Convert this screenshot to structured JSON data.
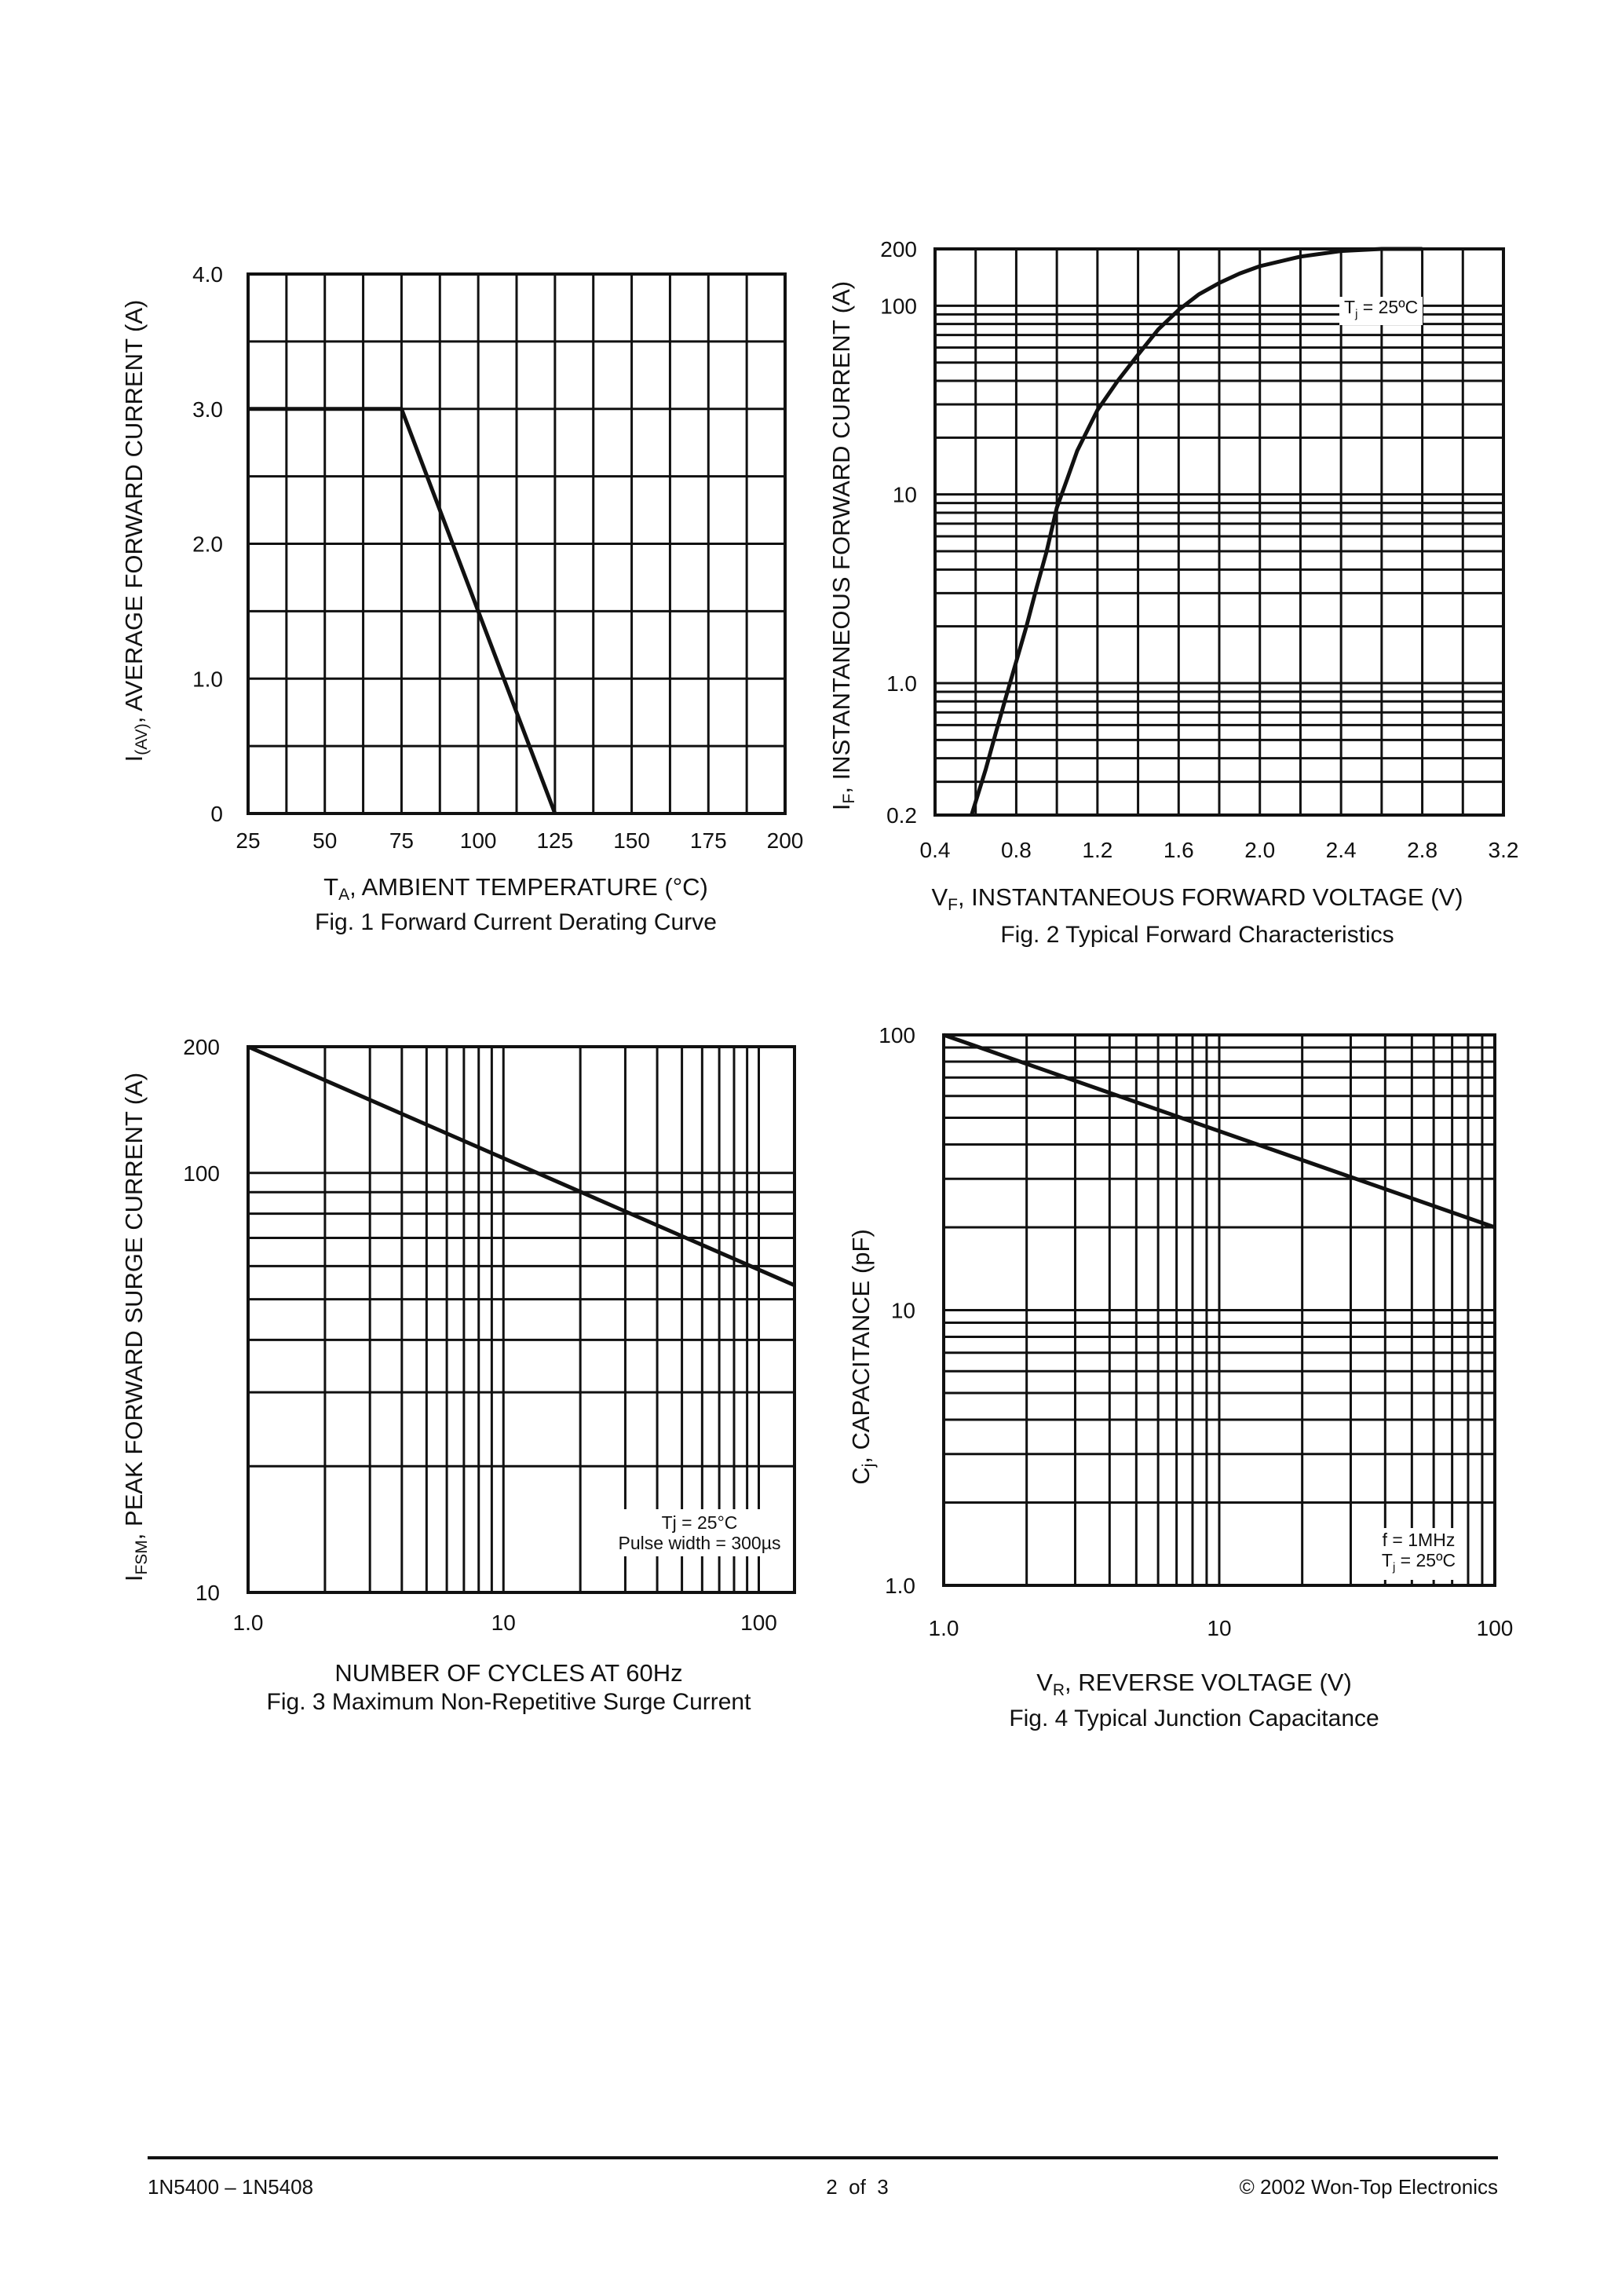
{
  "chart_data": [
    {
      "type": "line",
      "xscale": "linear",
      "yscale": "linear",
      "xlim": [
        25,
        200
      ],
      "ylim": [
        0,
        4.0
      ],
      "xticks": [
        "25",
        "50",
        "75",
        "100",
        "125",
        "150",
        "175",
        "200"
      ],
      "yticks": [
        "0",
        "1.0",
        "2.0",
        "3.0",
        "4.0"
      ],
      "grid": true,
      "xlabel": {
        "main": "T",
        "sub": "A",
        "rest": ", AMBIENT TEMPERATURE (°C)"
      },
      "ylabel": {
        "main": "I",
        "sub": "(AV)",
        "rest": ", AVERAGE FORWARD CURRENT (A)"
      },
      "caption": "Fig. 1  Forward Current Derating Curve",
      "series": [
        {
          "x": [
            25,
            75,
            125
          ],
          "y": [
            3.0,
            3.0,
            0
          ]
        }
      ]
    },
    {
      "type": "line",
      "xscale": "linear",
      "yscale": "log",
      "xlim": [
        0.4,
        3.2
      ],
      "ylim": [
        0.2,
        200
      ],
      "xticks": [
        "0.4",
        "0.8",
        "1.2",
        "1.6",
        "2.0",
        "2.4",
        "2.8",
        "3.2"
      ],
      "yticks": [
        "0.2",
        "1.0",
        "10",
        "100",
        "200"
      ],
      "grid": true,
      "xlabel": {
        "main": "V",
        "sub": "F",
        "rest": ", INSTANTANEOUS FORWARD VOLTAGE (V)"
      },
      "ylabel": {
        "main": "I",
        "sub": "F",
        "rest": ", INSTANTANEOUS FORWARD CURRENT (A)"
      },
      "caption": "Fig. 2  Typical Forward Characteristics",
      "annotation": {
        "line1_main": "T",
        "line1_sub": "j",
        "line1_rest": " =  25ºC"
      },
      "series": [
        {
          "x": [
            0.58,
            0.65,
            0.7,
            0.75,
            0.8,
            0.85,
            0.9,
            0.95,
            1.0,
            1.05,
            1.1,
            1.2,
            1.3,
            1.4,
            1.5,
            1.6,
            1.7,
            1.8,
            1.9,
            2.0,
            2.2,
            2.4,
            2.6,
            2.8
          ],
          "y": [
            0.2,
            0.35,
            0.55,
            0.85,
            1.3,
            2.0,
            3.2,
            5.0,
            8.5,
            12,
            17,
            28,
            40,
            55,
            75,
            95,
            115,
            132,
            148,
            162,
            182,
            195,
            200,
            200
          ]
        }
      ]
    },
    {
      "type": "line",
      "xscale": "log",
      "yscale": "log",
      "xlim": [
        1,
        138
      ],
      "ylim": [
        10,
        200
      ],
      "xticks": [
        "1.0",
        "10",
        "100"
      ],
      "yticks": [
        "10",
        "100",
        "200"
      ],
      "grid": true,
      "xlabel": {
        "main": "NUMBER OF CYCLES AT 60Hz",
        "sub": "",
        "rest": ""
      },
      "ylabel": {
        "main": "I",
        "sub": "FSM",
        "rest": ", PEAK FORWARD SURGE CURRENT (A)"
      },
      "caption": "Fig. 3  Maximum Non-Repetitive Surge Current",
      "annotation": {
        "line1": "Tj = 25°C",
        "line2": "Pulse width = 300µs"
      },
      "series": [
        {
          "x": [
            1,
            138
          ],
          "y": [
            200,
            54
          ]
        }
      ]
    },
    {
      "type": "line",
      "xscale": "log",
      "yscale": "log",
      "xlim": [
        1,
        100
      ],
      "ylim": [
        1,
        100
      ],
      "xticks": [
        "1.0",
        "10",
        "100"
      ],
      "yticks": [
        "1.0",
        "10",
        "100"
      ],
      "grid": true,
      "xlabel": {
        "main": "V",
        "sub": "R",
        "rest": ", REVERSE VOLTAGE (V)"
      },
      "ylabel": {
        "main": "C",
        "sub": "j",
        "rest": ", CAPACITANCE (pF)"
      },
      "caption": "Fig. 4  Typical Junction Capacitance",
      "annotation": {
        "line1": "f =  1MHz",
        "line2_main": "T",
        "line2_sub": "j",
        "line2_rest": " =  25ºC"
      },
      "series": [
        {
          "x": [
            1,
            100
          ],
          "y": [
            100,
            20
          ]
        }
      ]
    }
  ],
  "footer": {
    "left": "1N5400 – 1N5408",
    "center": "2  of  3",
    "right": "© 2002 Won-Top Electronics"
  },
  "colors": {
    "ink": "#111111",
    "background": "#ffffff"
  }
}
